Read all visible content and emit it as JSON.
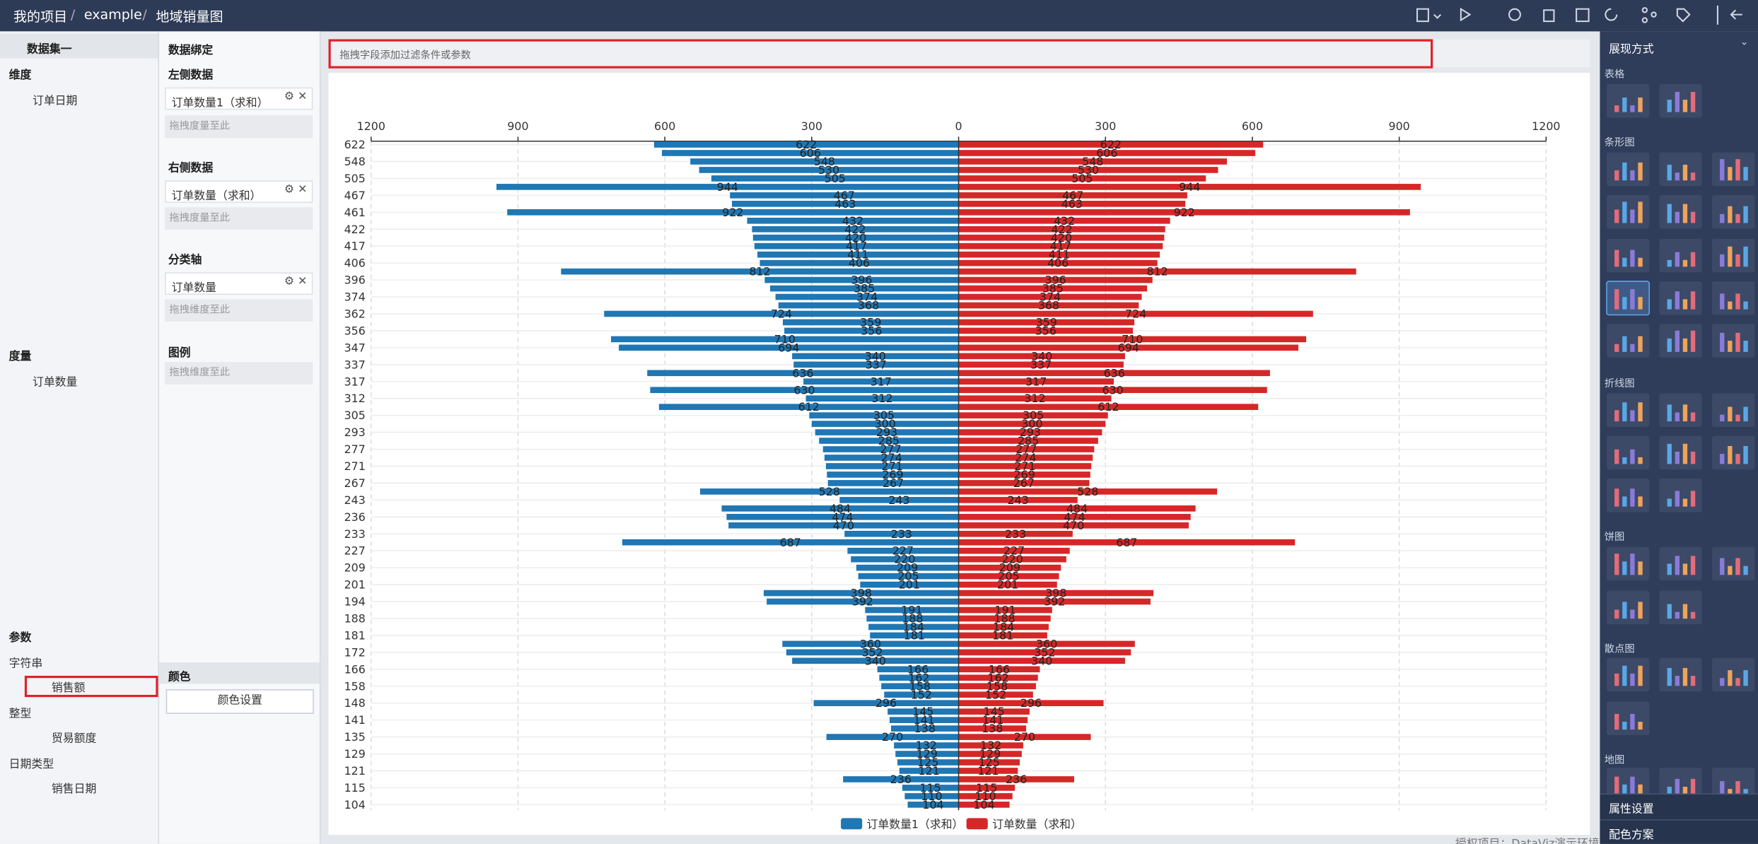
{
  "header": {
    "breadcrumb": [
      "我的项目",
      "example",
      "地域销量图"
    ],
    "separator": "/"
  },
  "left_panel": {
    "dataset": "数据集一",
    "dimension_title": "维度",
    "dimensions": [
      "订单日期"
    ],
    "measure_title": "度量",
    "measures": [
      "订单数量"
    ],
    "param_title": "参数",
    "param_groups": [
      {
        "type": "字符串",
        "items": [
          "销售额"
        ]
      },
      {
        "type": "整型",
        "items": [
          "贸易额度"
        ]
      },
      {
        "type": "日期类型",
        "items": [
          "销售日期"
        ]
      }
    ]
  },
  "binding_panel": {
    "title": "数据绑定",
    "left_title": "左侧数据",
    "left_field": "订单数量1（求和）",
    "left_drop": "拖拽度量至此",
    "right_title": "右侧数据",
    "right_field": "订单数量（求和）",
    "right_drop": "拖拽度量至此",
    "axis_title": "分类轴",
    "axis_field": "订单数量",
    "axis_drop": "拖拽维度至此",
    "legend_title": "图例",
    "legend_drop": "拖拽维度至此",
    "color_title": "颜色",
    "color_button": "颜色设置"
  },
  "filter_bar": {
    "placeholder": "拖拽字段添加过滤条件或参数"
  },
  "right_panel": {
    "title": "展现方式",
    "groups": [
      "表格",
      "条形图",
      "折线图",
      "饼图",
      "散点图",
      "地图"
    ],
    "property": "属性设置",
    "color_scheme": "配色方案"
  },
  "footer": {
    "text": "授权项目：DataViz演示环境"
  },
  "chart_data": {
    "type": "butterfly_bar",
    "categories": [
      622,
      null,
      548,
      null,
      505,
      null,
      467,
      null,
      461,
      null,
      422,
      null,
      417,
      null,
      406,
      null,
      396,
      null,
      374,
      null,
      362,
      null,
      356,
      null,
      347,
      null,
      337,
      null,
      317,
      null,
      312,
      null,
      305,
      null,
      293,
      null,
      277,
      null,
      271,
      null,
      267,
      null,
      243,
      null,
      236,
      null,
      233,
      null,
      227,
      null,
      209,
      null,
      201,
      null,
      194,
      null,
      188,
      null,
      181,
      null,
      172,
      null,
      166,
      null,
      158,
      null,
      148,
      null,
      141,
      null,
      135,
      null,
      129,
      null,
      121,
      null,
      115,
      null,
      104
    ],
    "series": [
      {
        "name": "订单数量1（求和）",
        "color": "#1f77b4",
        "values": [
          622,
          606,
          548,
          530,
          505,
          944,
          467,
          463,
          922,
          432,
          422,
          420,
          417,
          411,
          406,
          812,
          396,
          385,
          374,
          368,
          724,
          359,
          356,
          710,
          694,
          340,
          337,
          636,
          317,
          630,
          312,
          612,
          305,
          300,
          293,
          285,
          277,
          274,
          271,
          269,
          267,
          528,
          243,
          484,
          474,
          470,
          233,
          687,
          227,
          220,
          209,
          205,
          201,
          398,
          392,
          191,
          188,
          184,
          181,
          360,
          352,
          340,
          166,
          162,
          158,
          152,
          296,
          145,
          141,
          138,
          270,
          132,
          129,
          125,
          121,
          236,
          115,
          110,
          104
        ]
      },
      {
        "name": "订单数量（求和）",
        "color": "#d62728",
        "values": [
          622,
          606,
          548,
          530,
          505,
          944,
          467,
          463,
          922,
          432,
          422,
          420,
          417,
          411,
          406,
          812,
          396,
          385,
          374,
          368,
          724,
          359,
          356,
          710,
          694,
          340,
          337,
          636,
          317,
          630,
          312,
          612,
          305,
          300,
          293,
          285,
          277,
          274,
          271,
          269,
          267,
          528,
          243,
          484,
          474,
          470,
          233,
          687,
          227,
          220,
          209,
          205,
          201,
          398,
          392,
          191,
          188,
          184,
          181,
          360,
          352,
          340,
          166,
          162,
          158,
          152,
          296,
          145,
          141,
          138,
          270,
          132,
          129,
          125,
          121,
          236,
          115,
          110,
          104
        ]
      }
    ],
    "xlim": [
      0,
      1200
    ],
    "xticks": [
      0,
      300,
      600,
      900,
      1200
    ],
    "grid": true
  }
}
